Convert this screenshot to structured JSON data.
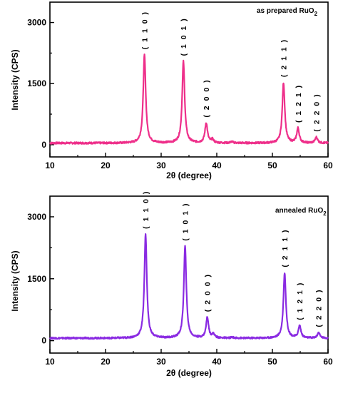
{
  "chart_data": [
    {
      "type": "line",
      "legend": "as prepared RuO",
      "legend_subscript": "2",
      "color": "#ee2f8a",
      "xlabel": "2θ (degree)",
      "ylabel": "Intensity (CPS)",
      "xlim": [
        10,
        60
      ],
      "ylim": [
        -300,
        3500
      ],
      "x_ticks": [
        "10",
        "20",
        "30",
        "40",
        "50",
        "60"
      ],
      "y_ticks": [
        "0",
        "1500",
        "3000"
      ],
      "baseline": 40,
      "noise": 22,
      "peaks": [
        {
          "label": "( 1 1 0 )",
          "x": 27.0,
          "y": 2200
        },
        {
          "label": "( 1 0 1 )",
          "x": 34.0,
          "y": 2040
        },
        {
          "label": "( 2 0 0 )",
          "x": 38.1,
          "y": 530
        },
        {
          "label": "",
          "x": 39.2,
          "y": 120
        },
        {
          "label": "",
          "x": 42.7,
          "y": 70
        },
        {
          "label": "( 2 1 1 )",
          "x": 52.0,
          "y": 1520
        },
        {
          "label": "( 1 2 1 )",
          "x": 54.6,
          "y": 400
        },
        {
          "label": "( 2 2 0 )",
          "x": 57.9,
          "y": 180
        }
      ]
    },
    {
      "type": "line",
      "legend": "annealed RuO",
      "legend_subscript": "2",
      "color": "#8a2be2",
      "xlabel": "2θ (degree)",
      "ylabel": "Intensity (CPS)",
      "xlim": [
        10,
        60
      ],
      "ylim": [
        -300,
        3500
      ],
      "x_ticks": [
        "10",
        "20",
        "30",
        "40",
        "50",
        "60"
      ],
      "y_ticks": [
        "0",
        "1500",
        "3000"
      ],
      "baseline": 60,
      "noise": 20,
      "peaks": [
        {
          "label": "( 1 1 0 )",
          "x": 27.2,
          "y": 2570
        },
        {
          "label": "( 1 0 1 )",
          "x": 34.3,
          "y": 2280
        },
        {
          "label": "( 2 0 0 )",
          "x": 38.3,
          "y": 560
        },
        {
          "label": "",
          "x": 39.4,
          "y": 150
        },
        {
          "label": "",
          "x": 42.8,
          "y": 80
        },
        {
          "label": "( 2 1 1 )",
          "x": 52.2,
          "y": 1640
        },
        {
          "label": "( 1 2 1 )",
          "x": 54.9,
          "y": 360
        },
        {
          "label": "( 2 2 0 )",
          "x": 58.3,
          "y": 190
        }
      ]
    }
  ]
}
